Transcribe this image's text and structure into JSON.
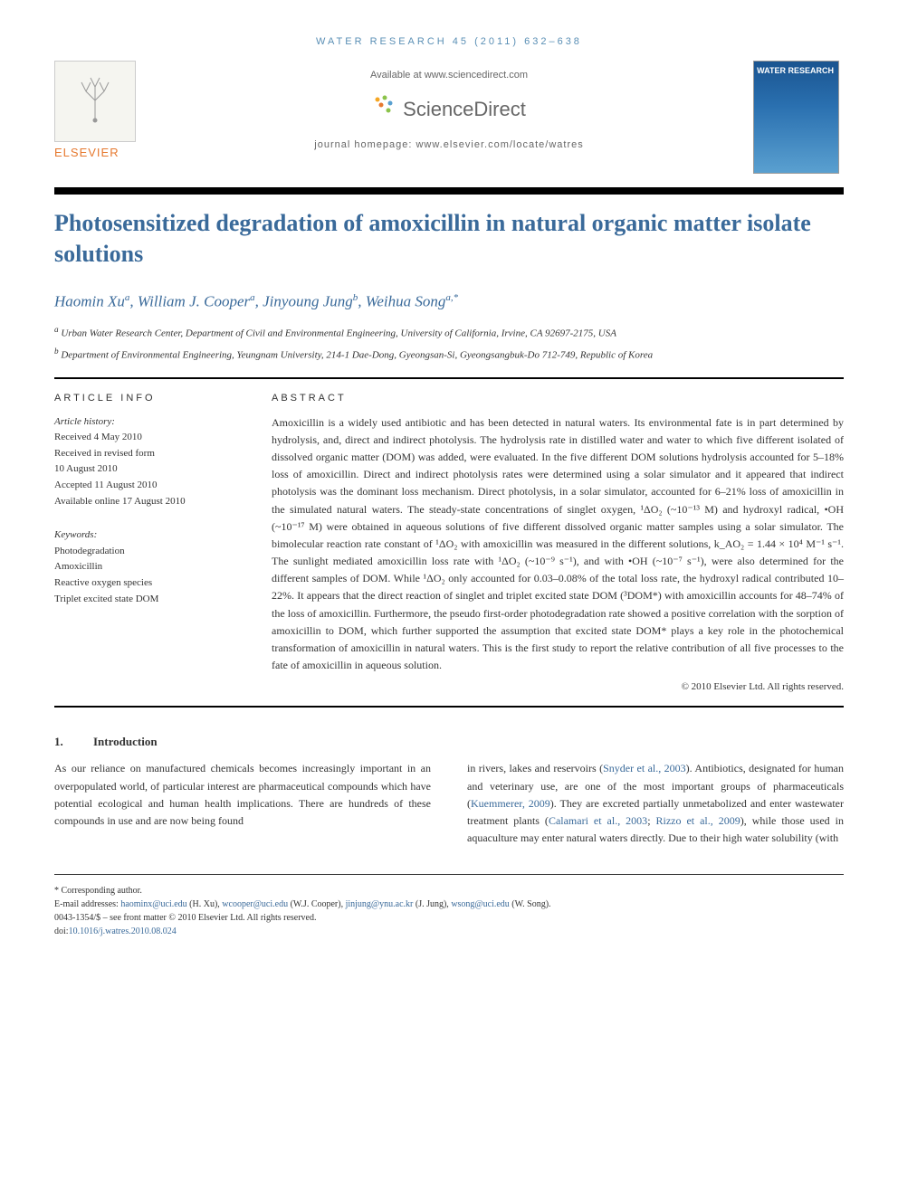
{
  "header": {
    "journal_ref": "WATER RESEARCH 45 (2011) 632–638",
    "available_text": "Available at www.sciencedirect.com",
    "sd_brand": "ScienceDirect",
    "journal_home": "journal homepage: www.elsevier.com/locate/watres",
    "elsevier_name": "ELSEVIER",
    "cover_title": "WATER RESEARCH"
  },
  "article": {
    "title": "Photosensitized degradation of amoxicillin in natural organic matter isolate solutions",
    "authors_html": "Haomin Xu<sup>a</sup>, William J. Cooper<sup>a</sup>, Jinyoung Jung<sup>b</sup>, Weihua Song<sup>a,*</sup>",
    "affiliations": {
      "a": "Urban Water Research Center, Department of Civil and Environmental Engineering, University of California, Irvine, CA 92697-2175, USA",
      "b": "Department of Environmental Engineering, Yeungnam University, 214-1 Dae-Dong, Gyeongsan-Si, Gyeongsangbuk-Do 712-749, Republic of Korea"
    }
  },
  "info": {
    "label": "ARTICLE INFO",
    "history_label": "Article history:",
    "history": [
      "Received 4 May 2010",
      "Received in revised form",
      "10 August 2010",
      "Accepted 11 August 2010",
      "Available online 17 August 2010"
    ],
    "keywords_label": "Keywords:",
    "keywords": [
      "Photodegradation",
      "Amoxicillin",
      "Reactive oxygen species",
      "Triplet excited state DOM"
    ]
  },
  "abstract": {
    "label": "ABSTRACT",
    "text": "Amoxicillin is a widely used antibiotic and has been detected in natural waters. Its environmental fate is in part determined by hydrolysis, and, direct and indirect photolysis. The hydrolysis rate in distilled water and water to which five different isolated of dissolved organic matter (DOM) was added, were evaluated. In the five different DOM solutions hydrolysis accounted for 5–18% loss of amoxicillin. Direct and indirect photolysis rates were determined using a solar simulator and it appeared that indirect photolysis was the dominant loss mechanism. Direct photolysis, in a solar simulator, accounted for 6–21% loss of amoxicillin in the simulated natural waters. The steady-state concentrations of singlet oxygen, ¹ΔO₂ (~10⁻¹³ M) and hydroxyl radical, •OH (~10⁻¹⁷ M) were obtained in aqueous solutions of five different dissolved organic matter samples using a solar simulator. The bimolecular reaction rate constant of ¹ΔO₂ with amoxicillin was measured in the different solutions, k_AO₂ = 1.44 × 10⁴ M⁻¹ s⁻¹. The sunlight mediated amoxicillin loss rate with ¹ΔO₂ (~10⁻⁹ s⁻¹), and with •OH (~10⁻⁷ s⁻¹), were also determined for the different samples of DOM. While ¹ΔO₂ only accounted for 0.03–0.08% of the total loss rate, the hydroxyl radical contributed 10–22%. It appears that the direct reaction of singlet and triplet excited state DOM (³DOM*) with amoxicillin accounts for 48–74% of the loss of amoxicillin. Furthermore, the pseudo first-order photodegradation rate showed a positive correlation with the sorption of amoxicillin to DOM, which further supported the assumption that excited state DOM* plays a key role in the photochemical transformation of amoxicillin in natural waters. This is the first study to report the relative contribution of all five processes to the fate of amoxicillin in aqueous solution.",
    "copyright": "© 2010 Elsevier Ltd. All rights reserved."
  },
  "intro": {
    "number": "1.",
    "heading": "Introduction",
    "col1": "As our reliance on manufactured chemicals becomes increasingly important in an overpopulated world, of particular interest are pharmaceutical compounds which have potential ecological and human health implications. There are hundreds of these compounds in use and are now being found",
    "col2_parts": [
      "in rivers, lakes and reservoirs (",
      "Snyder et al., 2003",
      "). Antibiotics, designated for human and veterinary use, are one of the most important groups of pharmaceuticals (",
      "Kuemmerer, 2009",
      "). They are excreted partially unmetabolized and enter wastewater treatment plants (",
      "Calamari et al., 2003",
      "; ",
      "Rizzo et al., 2009",
      "), while those used in aquaculture may enter natural waters directly. Due to their high water solubility (with"
    ]
  },
  "footer": {
    "corresponding": "* Corresponding author.",
    "email_label": "E-mail addresses: ",
    "emails": [
      {
        "addr": "haominx@uci.edu",
        "name": "(H. Xu)"
      },
      {
        "addr": "wcooper@uci.edu",
        "name": "(W.J. Cooper)"
      },
      {
        "addr": "jinjung@ynu.ac.kr",
        "name": "(J. Jung)"
      },
      {
        "addr": "wsong@uci.edu",
        "name": "(W. Song)"
      }
    ],
    "issn": "0043-1354/$ – see front matter © 2010 Elsevier Ltd. All rights reserved.",
    "doi_label": "doi:",
    "doi": "10.1016/j.watres.2010.08.024"
  },
  "colors": {
    "link_blue": "#3a6a9a",
    "elsevier_orange": "#e6792f"
  }
}
